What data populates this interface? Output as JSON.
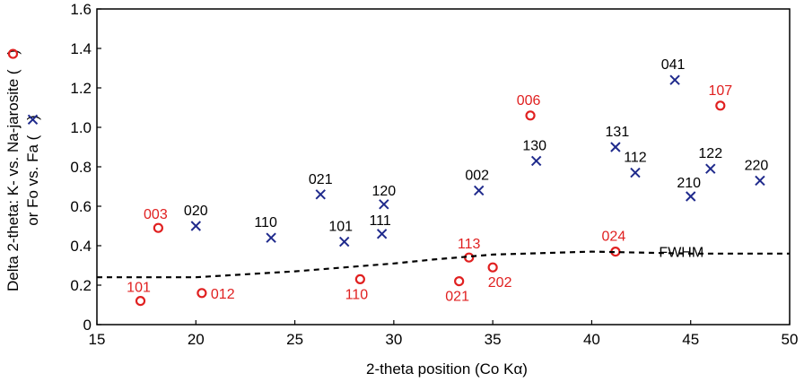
{
  "chart_data": {
    "type": "scatter",
    "title": "",
    "xlabel": "2-theta position (Co Kα)",
    "ylabel": {
      "line1_prefix": "Delta 2-theta: K- vs. Na-jarosite (",
      "line1_suffix": ")",
      "line2_prefix": "or Fo vs. Fa (",
      "line2_suffix": ")"
    },
    "xlim": [
      15,
      50
    ],
    "ylim": [
      0,
      1.6
    ],
    "xticks": [
      "15",
      "20",
      "25",
      "30",
      "35",
      "40",
      "45",
      "50"
    ],
    "yticks": [
      "0",
      "0.2",
      "0.4",
      "0.6",
      "0.8",
      "1.0",
      "1.2",
      "1.4",
      "1.6"
    ],
    "grid": false,
    "series": [
      {
        "marker": "circle",
        "color": "#e02020",
        "points": [
          {
            "x": 17.2,
            "y": 0.12,
            "label": "101"
          },
          {
            "x": 18.1,
            "y": 0.49,
            "label": "003"
          },
          {
            "x": 20.3,
            "y": 0.16,
            "label": "012"
          },
          {
            "x": 28.3,
            "y": 0.23,
            "label": "110"
          },
          {
            "x": 33.3,
            "y": 0.22,
            "label": "021"
          },
          {
            "x": 33.8,
            "y": 0.34,
            "label": "113"
          },
          {
            "x": 35.0,
            "y": 0.29,
            "label": "202"
          },
          {
            "x": 36.9,
            "y": 1.06,
            "label": "006"
          },
          {
            "x": 41.2,
            "y": 0.37,
            "label": "024"
          },
          {
            "x": 46.5,
            "y": 1.11,
            "label": "107"
          }
        ]
      },
      {
        "marker": "cross",
        "color": "#1f2a8c",
        "points": [
          {
            "x": 20.0,
            "y": 0.5,
            "label": "020"
          },
          {
            "x": 23.8,
            "y": 0.44,
            "label": "110"
          },
          {
            "x": 26.3,
            "y": 0.66,
            "label": "021"
          },
          {
            "x": 27.5,
            "y": 0.42,
            "label": "101"
          },
          {
            "x": 29.4,
            "y": 0.46,
            "label": "111"
          },
          {
            "x": 29.5,
            "y": 0.61,
            "label": "120"
          },
          {
            "x": 34.3,
            "y": 0.68,
            "label": "002"
          },
          {
            "x": 37.2,
            "y": 0.83,
            "label": "130"
          },
          {
            "x": 41.2,
            "y": 0.9,
            "label": "131"
          },
          {
            "x": 42.2,
            "y": 0.77,
            "label": "112"
          },
          {
            "x": 44.2,
            "y": 1.24,
            "label": "041"
          },
          {
            "x": 45.0,
            "y": 0.65,
            "label": "210"
          },
          {
            "x": 46.0,
            "y": 0.79,
            "label": "122"
          },
          {
            "x": 48.5,
            "y": 0.73,
            "label": "220"
          }
        ]
      },
      {
        "marker": "dashed-line",
        "color": "#000000",
        "label": "FWHM",
        "points": [
          {
            "x": 15,
            "y": 0.24
          },
          {
            "x": 20,
            "y": 0.24
          },
          {
            "x": 25,
            "y": 0.27
          },
          {
            "x": 30,
            "y": 0.31
          },
          {
            "x": 32,
            "y": 0.33
          },
          {
            "x": 35,
            "y": 0.355
          },
          {
            "x": 40,
            "y": 0.37
          },
          {
            "x": 45,
            "y": 0.36
          },
          {
            "x": 50,
            "y": 0.36
          }
        ]
      }
    ]
  }
}
